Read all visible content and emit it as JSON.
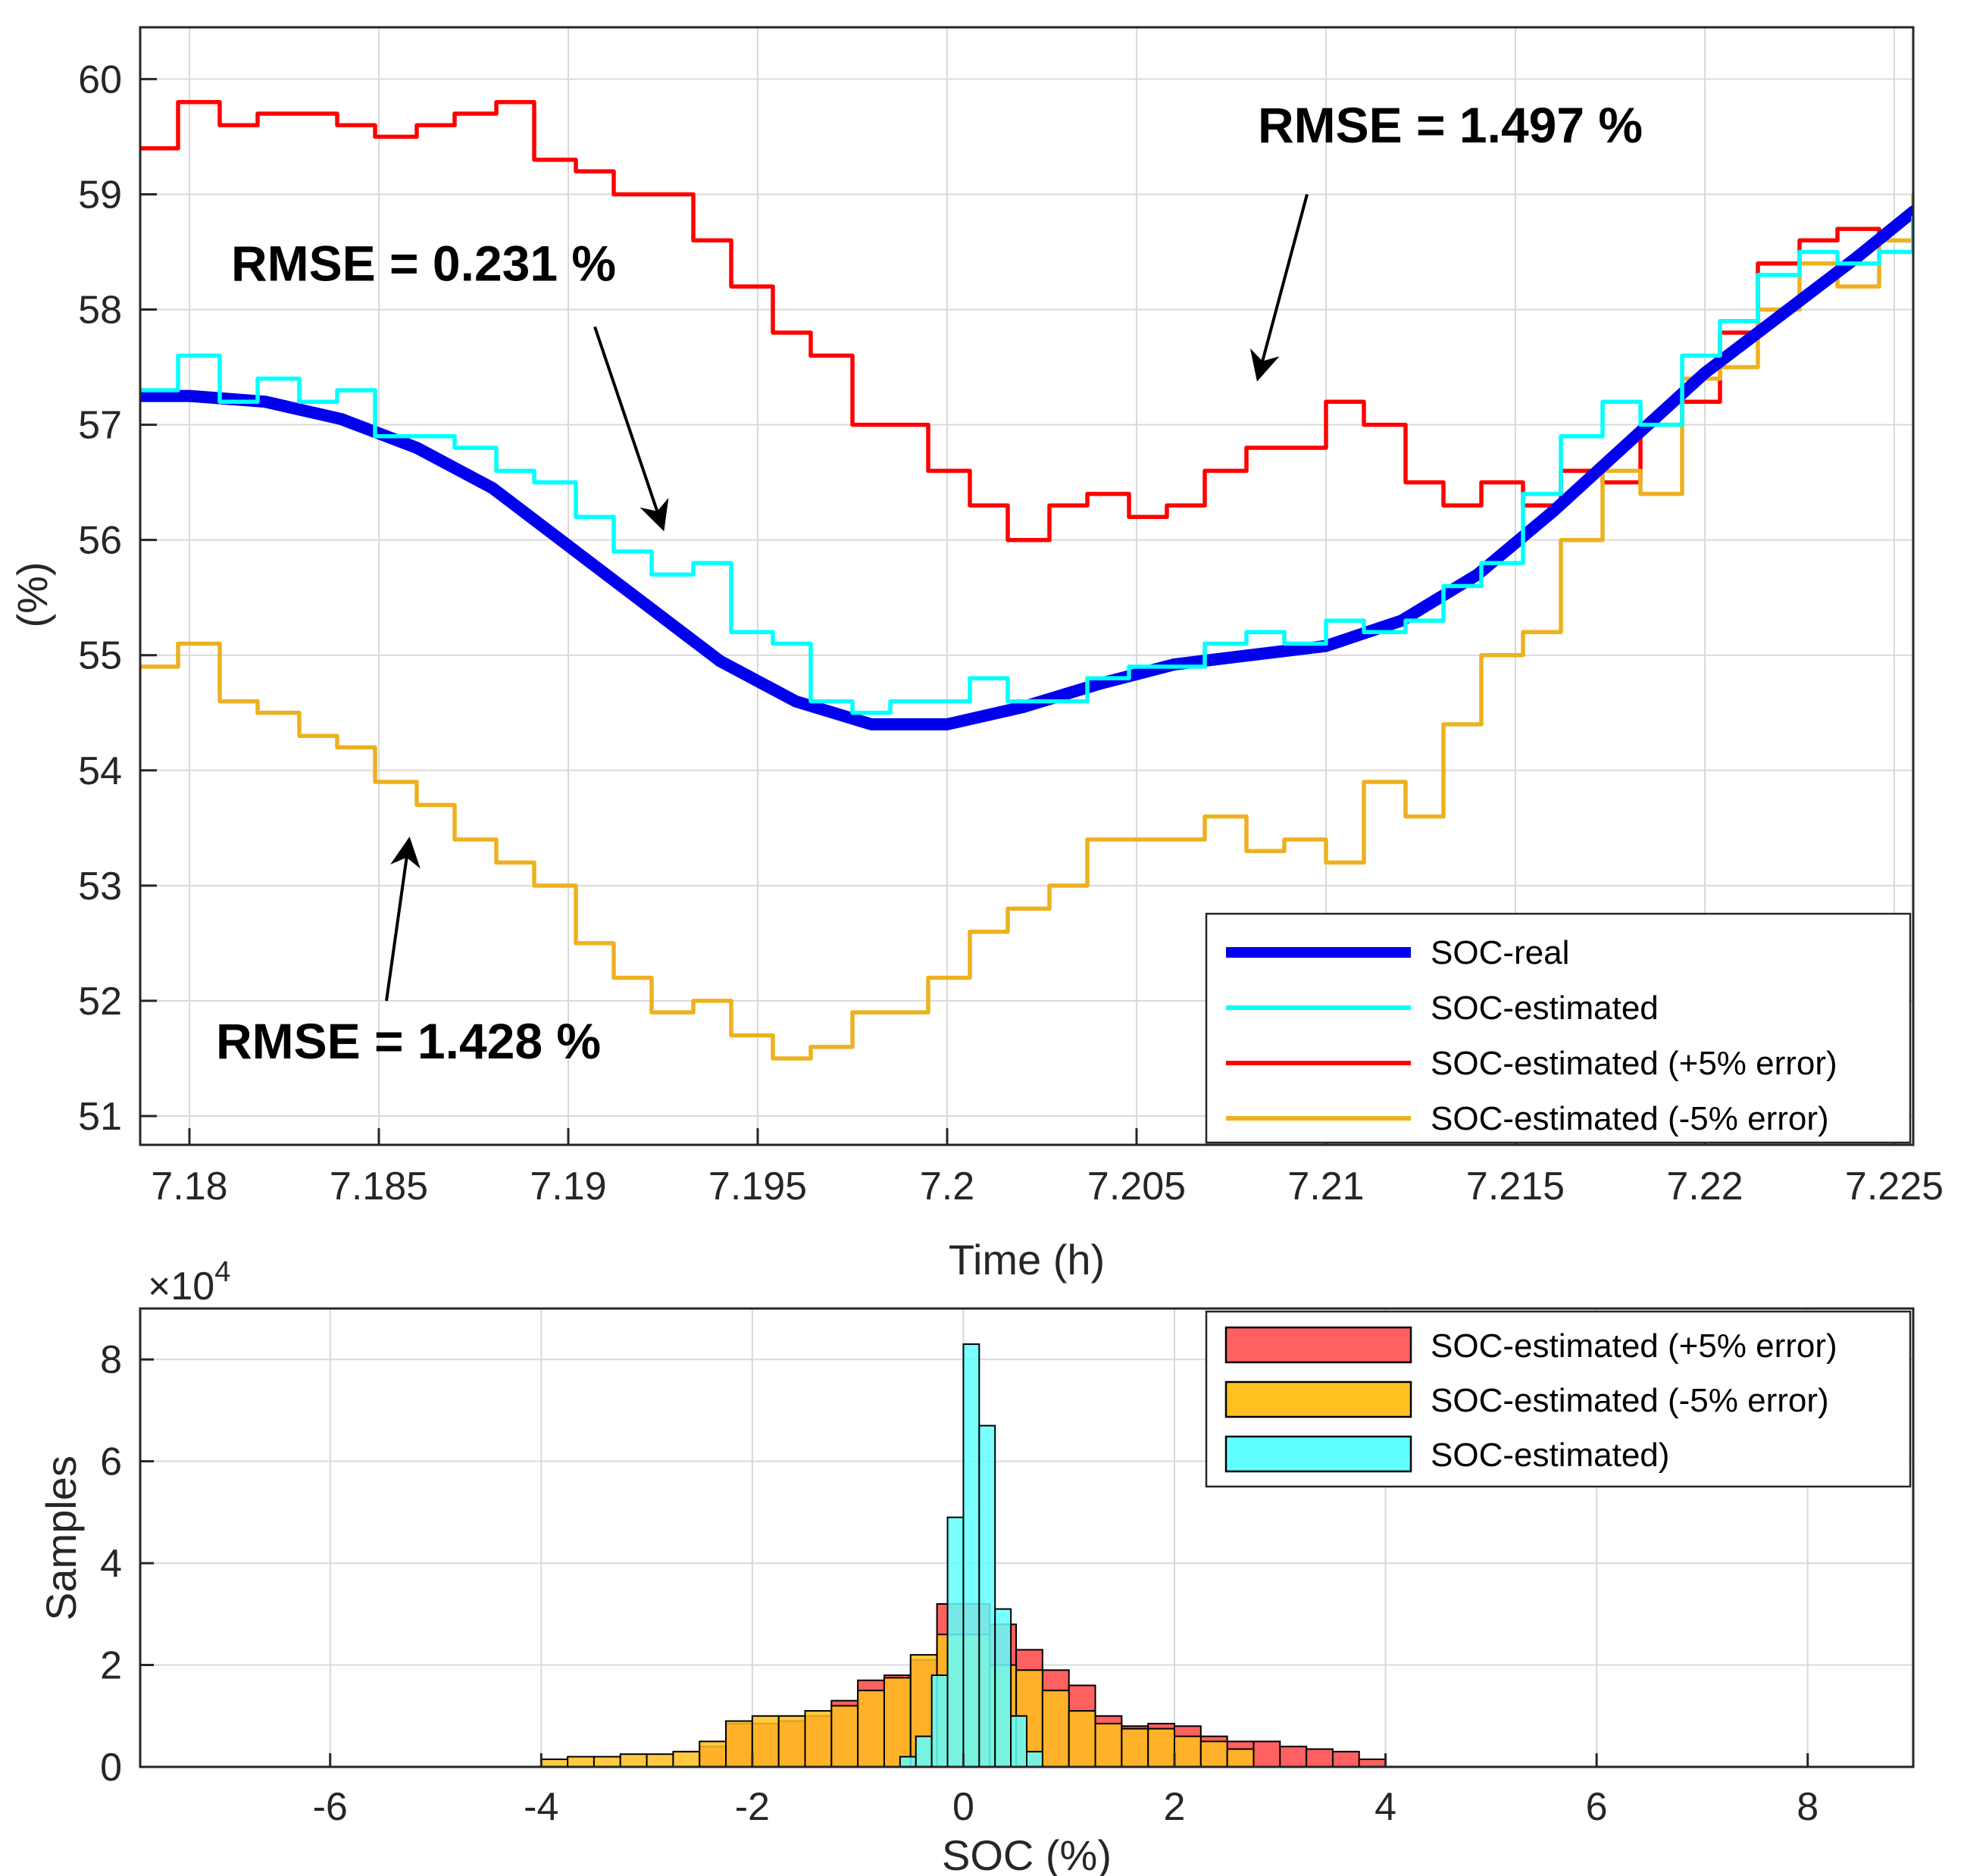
{
  "chart_data": [
    {
      "type": "line",
      "xlabel": "Time (h)",
      "ylabel": "(%)",
      "xlim": [
        7.1787,
        7.2255
      ],
      "ylim": [
        50.75,
        60.45
      ],
      "xticks": [
        "7.18",
        "7.185",
        "7.19",
        "7.195",
        "7.2",
        "7.205",
        "7.21",
        "7.215",
        "7.22",
        "7.225"
      ],
      "xtick_values": [
        7.18,
        7.185,
        7.19,
        7.195,
        7.2,
        7.205,
        7.21,
        7.215,
        7.22,
        7.225
      ],
      "yticks": [
        "51",
        "52",
        "53",
        "54",
        "55",
        "56",
        "57",
        "58",
        "59",
        "60"
      ],
      "ytick_values": [
        51,
        52,
        53,
        54,
        55,
        56,
        57,
        58,
        59,
        60
      ],
      "grid": true,
      "legend_position": "bottom-right",
      "colors": {
        "real": "#0000ee",
        "estimated": "#00ffff",
        "plus5": "#ff0000",
        "minus5": "#edb120"
      },
      "series": [
        {
          "name": "SOC-real",
          "style": "thick",
          "x": [
            7.1787,
            7.18,
            7.182,
            7.184,
            7.186,
            7.188,
            7.19,
            7.192,
            7.194,
            7.196,
            7.198,
            7.2,
            7.202,
            7.204,
            7.206,
            7.208,
            7.21,
            7.212,
            7.214,
            7.216,
            7.218,
            7.22,
            7.222,
            7.224,
            7.2255
          ],
          "y": [
            57.25,
            57.25,
            57.2,
            57.05,
            56.8,
            56.45,
            55.95,
            55.45,
            54.95,
            54.6,
            54.4,
            54.4,
            54.55,
            54.75,
            54.92,
            55.0,
            55.08,
            55.3,
            55.7,
            56.25,
            56.85,
            57.45,
            57.95,
            58.45,
            58.85
          ]
        },
        {
          "name": "SOC-estimated",
          "x": [
            7.1787,
            7.1797,
            7.1808,
            7.1818,
            7.1829,
            7.1839,
            7.1849,
            7.186,
            7.187,
            7.1881,
            7.1891,
            7.1902,
            7.1912,
            7.1922,
            7.1933,
            7.1943,
            7.1954,
            7.1964,
            7.1975,
            7.1985,
            7.1995,
            7.2006,
            7.2016,
            7.2027,
            7.2037,
            7.2048,
            7.2058,
            7.2068,
            7.2079,
            7.2089,
            7.21,
            7.211,
            7.2121,
            7.2131,
            7.2141,
            7.2152,
            7.2162,
            7.2173,
            7.2183,
            7.2194,
            7.2204,
            7.2214,
            7.2225,
            7.2235,
            7.2246,
            7.2255
          ],
          "y": [
            57.3,
            57.6,
            57.2,
            57.4,
            57.2,
            57.3,
            56.9,
            56.9,
            56.8,
            56.6,
            56.5,
            56.2,
            55.9,
            55.7,
            55.8,
            55.2,
            55.1,
            54.6,
            54.5,
            54.6,
            54.6,
            54.8,
            54.6,
            54.6,
            54.8,
            54.9,
            54.9,
            55.1,
            55.2,
            55.1,
            55.3,
            55.2,
            55.3,
            55.6,
            55.8,
            56.4,
            56.9,
            57.2,
            57.0,
            57.6,
            57.9,
            58.3,
            58.5,
            58.4,
            58.5,
            58.8
          ]
        },
        {
          "name": "SOC-estimated (+5% error)",
          "x": [
            7.1787,
            7.1797,
            7.1808,
            7.1818,
            7.1829,
            7.1839,
            7.1849,
            7.186,
            7.187,
            7.1881,
            7.1891,
            7.1902,
            7.1912,
            7.1922,
            7.1933,
            7.1943,
            7.1954,
            7.1964,
            7.1975,
            7.1985,
            7.1995,
            7.2006,
            7.2016,
            7.2027,
            7.2037,
            7.2048,
            7.2058,
            7.2068,
            7.2079,
            7.2089,
            7.21,
            7.211,
            7.2121,
            7.2131,
            7.2141,
            7.2152,
            7.2162,
            7.2173,
            7.2183,
            7.2194,
            7.2204,
            7.2214,
            7.2225,
            7.2235,
            7.2246,
            7.2255
          ],
          "y": [
            59.4,
            59.8,
            59.6,
            59.7,
            59.7,
            59.6,
            59.5,
            59.6,
            59.7,
            59.8,
            59.3,
            59.2,
            59.0,
            59.0,
            58.6,
            58.2,
            57.8,
            57.6,
            57.0,
            57.0,
            56.6,
            56.3,
            56.0,
            56.3,
            56.4,
            56.2,
            56.3,
            56.6,
            56.8,
            56.8,
            57.2,
            57.0,
            56.5,
            56.3,
            56.5,
            56.3,
            56.6,
            56.5,
            57.0,
            57.2,
            57.8,
            58.4,
            58.6,
            58.7,
            58.6,
            58.9
          ]
        },
        {
          "name": "SOC-estimated (-5% error)",
          "x": [
            7.1787,
            7.1797,
            7.1808,
            7.1818,
            7.1829,
            7.1839,
            7.1849,
            7.186,
            7.187,
            7.1881,
            7.1891,
            7.1902,
            7.1912,
            7.1922,
            7.1933,
            7.1943,
            7.1954,
            7.1964,
            7.1975,
            7.1985,
            7.1995,
            7.2006,
            7.2016,
            7.2027,
            7.2037,
            7.2048,
            7.2058,
            7.2068,
            7.2079,
            7.2089,
            7.21,
            7.211,
            7.2121,
            7.2131,
            7.2141,
            7.2152,
            7.2162,
            7.2173,
            7.2183,
            7.2194,
            7.2204,
            7.2214,
            7.2225,
            7.2235,
            7.2246,
            7.2255
          ],
          "y": [
            54.9,
            55.1,
            54.6,
            54.5,
            54.3,
            54.2,
            53.9,
            53.7,
            53.4,
            53.2,
            53.0,
            52.5,
            52.2,
            51.9,
            52.0,
            51.7,
            51.5,
            51.6,
            51.9,
            51.9,
            52.2,
            52.6,
            52.8,
            53.0,
            53.4,
            53.4,
            53.4,
            53.6,
            53.3,
            53.4,
            53.2,
            53.9,
            53.6,
            54.4,
            55.0,
            55.2,
            56.0,
            56.6,
            56.4,
            57.4,
            57.5,
            58.0,
            58.4,
            58.2,
            58.6,
            59.0
          ]
        }
      ],
      "annotations": [
        {
          "text": "RMSE = 1.497 %",
          "x": 7.2082,
          "y": 59.45,
          "arrow_from": [
            7.2095,
            59.0
          ],
          "arrow_to": [
            7.2082,
            57.4
          ]
        },
        {
          "text": "RMSE = 0.231 %",
          "x": 7.1811,
          "y": 58.25,
          "arrow_from": [
            7.1907,
            57.85
          ],
          "arrow_to": [
            7.1925,
            56.1
          ]
        },
        {
          "text": "RMSE = 1.428 %",
          "x": 7.1807,
          "y": 51.5,
          "arrow_from": [
            7.1852,
            52.0
          ],
          "arrow_to": [
            7.1858,
            53.4
          ]
        }
      ]
    },
    {
      "type": "bar",
      "subtype": "histogram",
      "xlabel": "SOC (%)",
      "ylabel": "Samples",
      "exponent_label": "×10",
      "exponent": "4",
      "xlim": [
        -7.8,
        9.0
      ],
      "ylim": [
        0,
        9
      ],
      "xticks": [
        "-6",
        "-4",
        "-2",
        "0",
        "2",
        "4",
        "6",
        "8"
      ],
      "xtick_values": [
        -6,
        -4,
        -2,
        0,
        2,
        4,
        6,
        8
      ],
      "yticks": [
        "0",
        "2",
        "4",
        "6",
        "8"
      ],
      "ytick_values": [
        0,
        2,
        4,
        6,
        8
      ],
      "grid": true,
      "legend_position": "top-right",
      "colors": {
        "plus5": "#ff6060",
        "minus5": "#ffc020",
        "estimated": "#60ffff"
      },
      "series": [
        {
          "name": "SOC-estimated (+5% error)",
          "bin_edges": [
            -2.5,
            -2.25,
            -2.0,
            -1.75,
            -1.5,
            -1.25,
            -1.0,
            -0.75,
            -0.5,
            -0.25,
            0.0,
            0.25,
            0.5,
            0.75,
            1.0,
            1.25,
            1.5,
            1.75,
            2.0,
            2.25,
            2.5,
            2.75,
            3.0,
            3.25,
            3.5,
            3.75,
            4.0
          ],
          "values": [
            0.4,
            0.85,
            0.85,
            0.9,
            1.0,
            1.3,
            1.7,
            1.8,
            2.1,
            3.2,
            3.2,
            2.8,
            2.3,
            1.9,
            1.6,
            1.0,
            0.8,
            0.85,
            0.8,
            0.6,
            0.5,
            0.5,
            0.4,
            0.35,
            0.3,
            0.15
          ]
        },
        {
          "name": "SOC-estimated (-5% error)",
          "bin_edges": [
            -4.0,
            -3.75,
            -3.5,
            -3.25,
            -3.0,
            -2.75,
            -2.5,
            -2.25,
            -2.0,
            -1.75,
            -1.5,
            -1.25,
            -1.0,
            -0.75,
            -0.5,
            -0.25,
            0.0,
            0.25,
            0.5,
            0.75,
            1.0,
            1.25,
            1.5,
            1.75,
            2.0,
            2.25,
            2.5,
            2.75
          ],
          "values": [
            0.15,
            0.2,
            0.2,
            0.25,
            0.25,
            0.3,
            0.5,
            0.9,
            1.0,
            1.0,
            1.1,
            1.2,
            1.5,
            1.75,
            2.2,
            2.6,
            2.6,
            2.0,
            1.9,
            1.5,
            1.1,
            0.85,
            0.75,
            0.75,
            0.6,
            0.5,
            0.35
          ]
        },
        {
          "name": "SOC-estimated)",
          "bin_edges": [
            -0.6,
            -0.45,
            -0.3,
            -0.15,
            0.0,
            0.15,
            0.3,
            0.45,
            0.6,
            0.75
          ],
          "values": [
            0.2,
            0.6,
            1.8,
            4.9,
            8.3,
            6.7,
            3.1,
            1.0,
            0.3
          ]
        }
      ]
    }
  ]
}
